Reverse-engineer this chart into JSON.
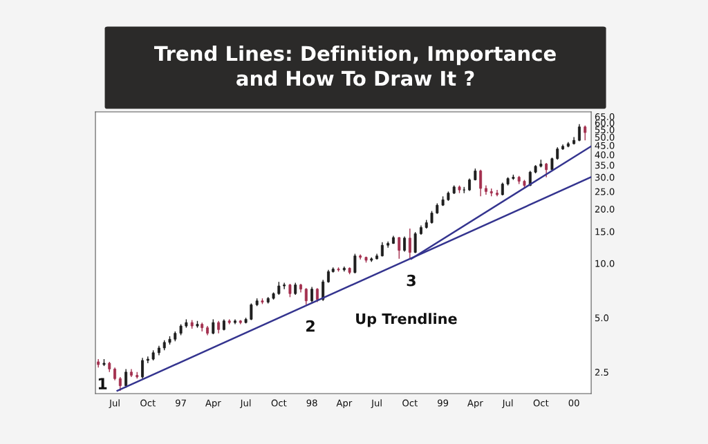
{
  "chart_data": {
    "type": "candlestick",
    "title": "Trend Lines: Definition, Importance\nand How To Draw It ?",
    "log": "y",
    "grid": false,
    "xlim": [
      "1996-05-08",
      "2000-02-18"
    ],
    "ylim": [
      1.9,
      69
    ],
    "xticks": [
      {
        "value": "1996-07-01",
        "label": "Jul"
      },
      {
        "value": "1996-10-01",
        "label": "Oct"
      },
      {
        "value": "1997-01-01",
        "label": "97"
      },
      {
        "value": "1997-04-01",
        "label": "Apr"
      },
      {
        "value": "1997-07-01",
        "label": "Jul"
      },
      {
        "value": "1997-10-01",
        "label": "Oct"
      },
      {
        "value": "1998-01-01",
        "label": "98"
      },
      {
        "value": "1998-04-01",
        "label": "Apr"
      },
      {
        "value": "1998-07-01",
        "label": "Jul"
      },
      {
        "value": "1998-10-01",
        "label": "Oct"
      },
      {
        "value": "1999-01-01",
        "label": "99"
      },
      {
        "value": "1999-04-01",
        "label": "Apr"
      },
      {
        "value": "1999-07-01",
        "label": "Jul"
      },
      {
        "value": "1999-10-01",
        "label": "Oct"
      },
      {
        "value": "2000-01-01",
        "label": "00"
      }
    ],
    "yticks": [
      {
        "value": 2.5,
        "label": "2.5"
      },
      {
        "value": 5,
        "label": "5.0"
      },
      {
        "value": 10,
        "label": "10.0"
      },
      {
        "value": 15,
        "label": "15.0"
      },
      {
        "value": 20,
        "label": "20.0"
      },
      {
        "value": 25,
        "label": "25.0"
      },
      {
        "value": 30,
        "label": "30.0"
      },
      {
        "value": 35,
        "label": "35.0"
      },
      {
        "value": 40,
        "label": "40.0"
      },
      {
        "value": 45,
        "label": "45.0"
      },
      {
        "value": 50,
        "label": "50.0"
      },
      {
        "value": 55,
        "label": "55.0"
      },
      {
        "value": 60,
        "label": "60.0"
      },
      {
        "value": 65,
        "label": "65.0"
      }
    ],
    "series": [
      {
        "color": "#1e1e1e",
        "x": [
          "1996-06-01",
          "1996-08-01",
          "1996-09-16",
          "1996-10-01",
          "1996-10-16",
          "1996-11-01",
          "1996-11-16",
          "1996-12-01",
          "1996-12-16",
          "1997-01-01",
          "1997-01-16",
          "1997-02-16",
          "1997-04-01",
          "1997-05-01",
          "1997-06-01",
          "1997-07-01",
          "1997-07-16",
          "1997-08-01",
          "1997-09-01",
          "1997-09-16",
          "1997-10-01",
          "1997-10-16",
          "1997-11-16",
          "1998-01-01",
          "1998-02-01",
          "1998-02-16",
          "1998-03-01",
          "1998-04-01",
          "1998-05-01",
          "1998-06-16",
          "1998-07-01",
          "1998-07-16",
          "1998-08-01",
          "1998-08-16",
          "1998-09-16",
          "1998-10-16",
          "1998-11-01",
          "1998-11-16",
          "1998-12-01",
          "1998-12-16",
          "1999-01-01",
          "1999-01-16",
          "1999-02-01",
          "1999-03-01",
          "1999-03-16",
          "1999-04-01",
          "1999-06-16",
          "1999-07-01",
          "1999-07-16",
          "1999-09-01",
          "1999-09-16",
          "1999-10-01",
          "1999-11-01",
          "1999-11-16",
          "1999-12-01",
          "1999-12-16",
          "2000-01-01",
          "2000-01-16"
        ],
        "ohlc": [
          [
            2.75,
            2.95,
            2.7,
            2.8
          ],
          [
            2.1,
            2.6,
            2.05,
            2.5
          ],
          [
            2.35,
            3.0,
            2.3,
            2.9
          ],
          [
            2.9,
            3.05,
            2.8,
            2.95
          ],
          [
            2.95,
            3.3,
            2.9,
            3.2
          ],
          [
            3.2,
            3.5,
            3.1,
            3.4
          ],
          [
            3.4,
            3.75,
            3.3,
            3.65
          ],
          [
            3.65,
            3.95,
            3.55,
            3.8
          ],
          [
            3.8,
            4.2,
            3.7,
            4.1
          ],
          [
            4.1,
            4.6,
            4.0,
            4.5
          ],
          [
            4.5,
            4.9,
            4.4,
            4.7
          ],
          [
            4.5,
            4.8,
            4.4,
            4.6
          ],
          [
            4.1,
            4.9,
            4.05,
            4.7
          ],
          [
            4.3,
            4.9,
            4.25,
            4.8
          ],
          [
            4.7,
            4.9,
            4.6,
            4.8
          ],
          [
            4.7,
            5.0,
            4.65,
            4.9
          ],
          [
            4.9,
            6.0,
            4.85,
            5.9
          ],
          [
            5.9,
            6.4,
            5.8,
            6.2
          ],
          [
            6.1,
            6.5,
            6.0,
            6.4
          ],
          [
            6.4,
            6.9,
            6.3,
            6.8
          ],
          [
            6.8,
            7.9,
            6.7,
            7.5
          ],
          [
            7.5,
            7.8,
            7.2,
            7.6
          ],
          [
            6.8,
            7.8,
            6.7,
            7.6
          ],
          [
            6.2,
            7.4,
            6.0,
            7.2
          ],
          [
            6.3,
            8.1,
            6.2,
            7.9
          ],
          [
            7.9,
            9.2,
            7.8,
            9.0
          ],
          [
            9.0,
            9.5,
            8.9,
            9.3
          ],
          [
            9.2,
            9.6,
            9.0,
            9.4
          ],
          [
            8.9,
            11.3,
            8.8,
            11.0
          ],
          [
            10.4,
            10.8,
            10.2,
            10.6
          ],
          [
            10.6,
            11.3,
            10.5,
            11.0
          ],
          [
            11.0,
            13.1,
            10.9,
            12.6
          ],
          [
            12.6,
            13.2,
            12.2,
            12.9
          ],
          [
            12.9,
            14.2,
            12.8,
            13.9
          ],
          [
            11.8,
            14.1,
            11.6,
            13.8
          ],
          [
            11.5,
            14.9,
            11.4,
            14.6
          ],
          [
            14.6,
            16.2,
            14.4,
            15.8
          ],
          [
            15.8,
            17.4,
            15.6,
            16.8
          ],
          [
            16.8,
            19.5,
            16.6,
            19.0
          ],
          [
            19.0,
            21.5,
            18.8,
            21.0
          ],
          [
            21.0,
            23.5,
            20.8,
            22.5
          ],
          [
            22.5,
            25.0,
            22.2,
            24.5
          ],
          [
            24.5,
            27.0,
            24.2,
            26.5
          ],
          [
            25.5,
            26.5,
            24.5,
            25.5
          ],
          [
            25.5,
            29.5,
            25.2,
            29.0
          ],
          [
            29.0,
            33.5,
            28.8,
            32.5
          ],
          [
            24.0,
            28.0,
            23.8,
            27.5
          ],
          [
            27.5,
            30.0,
            27.0,
            29.5
          ],
          [
            29.5,
            31.0,
            29.0,
            30.0
          ],
          [
            27.0,
            32.5,
            26.8,
            32.0
          ],
          [
            32.0,
            35.0,
            31.5,
            34.5
          ],
          [
            34.5,
            37.5,
            34.0,
            35.5
          ],
          [
            33.0,
            38.5,
            32.8,
            38.0
          ],
          [
            38.0,
            44.0,
            37.5,
            43.0
          ],
          [
            43.0,
            45.5,
            42.5,
            44.5
          ],
          [
            44.5,
            47.0,
            44.0,
            46.0
          ],
          [
            46.0,
            50.0,
            45.5,
            48.0
          ],
          [
            48.0,
            59.0,
            47.5,
            57.0
          ]
        ]
      },
      {
        "color": "#a3304f",
        "x": [
          "1996-05-16",
          "1996-06-16",
          "1996-07-01",
          "1996-07-16",
          "1996-08-16",
          "1996-09-01",
          "1997-02-01",
          "1997-03-01",
          "1997-03-16",
          "1997-04-16",
          "1997-05-16",
          "1997-06-16",
          "1997-08-16",
          "1997-11-01",
          "1997-12-01",
          "1997-12-16",
          "1998-01-16",
          "1998-03-16",
          "1998-04-16",
          "1998-05-16",
          "1998-06-01",
          "1998-09-01",
          "1998-10-01",
          "1999-02-16",
          "1999-04-16",
          "1999-05-01",
          "1999-05-16",
          "1999-06-01",
          "1999-08-01",
          "1999-08-16",
          "1999-10-16",
          "2000-02-01"
        ],
        "ohlc": [
          [
            2.85,
            2.95,
            2.65,
            2.75
          ],
          [
            2.8,
            2.85,
            2.5,
            2.6
          ],
          [
            2.6,
            2.65,
            2.25,
            2.3
          ],
          [
            2.3,
            2.35,
            1.97,
            2.1
          ],
          [
            2.5,
            2.6,
            2.35,
            2.4
          ],
          [
            2.4,
            2.5,
            2.3,
            2.35
          ],
          [
            4.7,
            4.85,
            4.35,
            4.5
          ],
          [
            4.6,
            4.7,
            4.2,
            4.4
          ],
          [
            4.4,
            4.5,
            4.0,
            4.1
          ],
          [
            4.7,
            4.8,
            4.1,
            4.3
          ],
          [
            4.8,
            4.9,
            4.6,
            4.7
          ],
          [
            4.8,
            4.85,
            4.6,
            4.7
          ],
          [
            6.2,
            6.4,
            5.95,
            6.1
          ],
          [
            7.6,
            7.7,
            6.5,
            6.8
          ],
          [
            7.6,
            7.7,
            6.9,
            7.2
          ],
          [
            7.2,
            7.3,
            5.9,
            6.2
          ],
          [
            7.2,
            7.3,
            6.1,
            6.3
          ],
          [
            9.3,
            9.5,
            9.0,
            9.2
          ],
          [
            9.4,
            9.5,
            8.7,
            8.9
          ],
          [
            11.0,
            11.2,
            10.5,
            10.8
          ],
          [
            10.8,
            10.9,
            10.1,
            10.4
          ],
          [
            13.9,
            14.0,
            10.6,
            11.8
          ],
          [
            13.8,
            15.6,
            10.6,
            11.5
          ],
          [
            26.5,
            27.0,
            24.5,
            25.5
          ],
          [
            32.5,
            33.0,
            23.5,
            26.0
          ],
          [
            26.0,
            27.0,
            24.0,
            25.0
          ],
          [
            25.0,
            26.0,
            23.5,
            24.5
          ],
          [
            24.5,
            25.5,
            23.5,
            24.0
          ],
          [
            30.0,
            30.5,
            27.5,
            28.5
          ],
          [
            28.5,
            29.0,
            26.0,
            27.0
          ],
          [
            35.5,
            36.0,
            30.0,
            33.0
          ],
          [
            57.0,
            58.0,
            48.0,
            53.0
          ]
        ]
      },
      {
        "type": "line",
        "name": "Up Trendline",
        "color": "#34348f",
        "x": [
          "1996-07-08",
          "2000-02-17"
        ],
        "values": [
          1.97,
          30
        ]
      },
      {
        "type": "line",
        "color": "#34348f",
        "x": [
          "1998-10-05",
          "2000-02-17"
        ],
        "values": [
          10.6,
          44.4
        ]
      }
    ],
    "annotations": [
      {
        "text": "1",
        "x": "1996-07-08",
        "y": 1.97
      },
      {
        "text": "2",
        "x": "1997-12-28",
        "y": 5.93
      },
      {
        "text": "3",
        "x": "1998-10-05",
        "y": 10.6
      }
    ]
  }
}
